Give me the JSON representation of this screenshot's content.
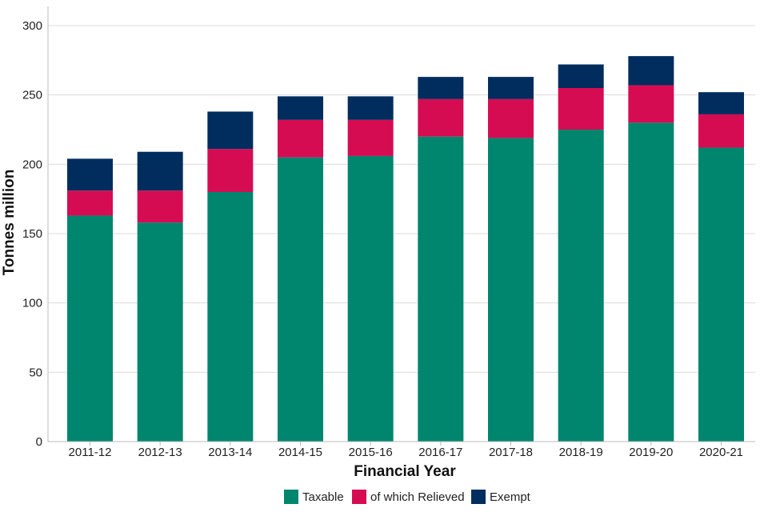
{
  "chart_data": {
    "type": "bar",
    "stacked": true,
    "categories": [
      "2011-12",
      "2012-13",
      "2013-14",
      "2014-15",
      "2015-16",
      "2016-17",
      "2017-18",
      "2018-19",
      "2019-20",
      "2020-21"
    ],
    "series": [
      {
        "name": "Taxable",
        "color": "#00856F",
        "values": [
          163,
          158,
          180,
          205,
          206,
          220,
          219,
          225,
          230,
          212
        ]
      },
      {
        "name": "of which Relieved",
        "color": "#D60C52",
        "values": [
          18,
          23,
          31,
          27,
          26,
          27,
          28,
          30,
          27,
          24
        ]
      },
      {
        "name": "Exempt",
        "color": "#002D5E",
        "values": [
          23,
          28,
          27,
          17,
          17,
          16,
          16,
          17,
          21,
          16
        ]
      }
    ],
    "xlabel": "Financial Year",
    "ylabel": "Tonnes million",
    "ylim": [
      0,
      300
    ],
    "yticks": [
      0,
      50,
      100,
      150,
      200,
      250,
      300
    ],
    "grid": true,
    "legend": "bottom-center"
  }
}
